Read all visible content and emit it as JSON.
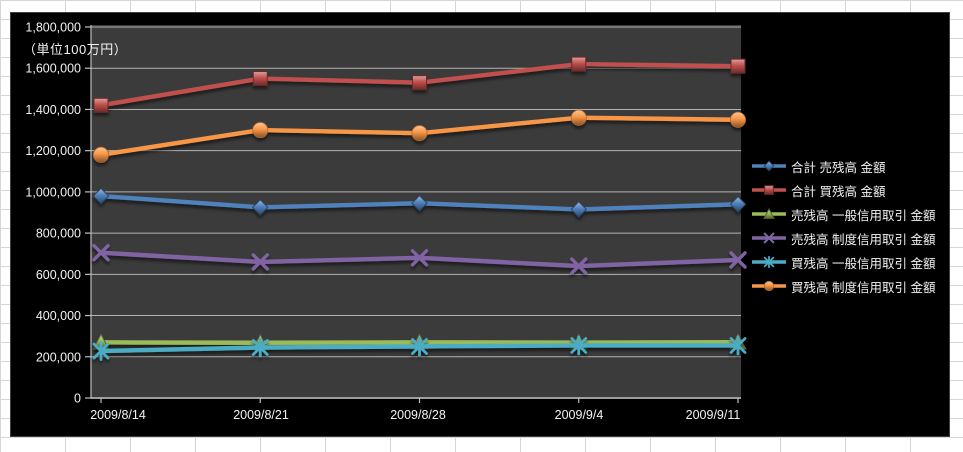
{
  "chart": {
    "background": "#000000",
    "plot_fill": "#3b3b3b",
    "gridline_color": "#c8c8c8",
    "axis_color": "#bfbfbf",
    "text_color": "#f2f2f2"
  },
  "chart_data": {
    "type": "line",
    "title": "",
    "unit_annotation": "（単位100万円）",
    "categories": [
      "2009/8/14",
      "2009/8/21",
      "2009/8/28",
      "2009/9/4",
      "2009/9/11"
    ],
    "series": [
      {
        "name": "合計 売残高 金額",
        "color": "#4F81BD",
        "marker": "diamond",
        "values": [
          980000,
          925000,
          945000,
          915000,
          940000
        ]
      },
      {
        "name": "合計 買残高 金額",
        "color": "#C0504D",
        "marker": "square",
        "values": [
          1420000,
          1550000,
          1530000,
          1620000,
          1610000
        ]
      },
      {
        "name": "売残高 一般信用取引 金額",
        "color": "#9BBB59",
        "marker": "triangle",
        "values": [
          270000,
          268000,
          270000,
          269000,
          271000
        ]
      },
      {
        "name": "売残高 制度信用取引 金額",
        "color": "#8064A2",
        "marker": "x-cross",
        "values": [
          705000,
          660000,
          680000,
          640000,
          670000
        ]
      },
      {
        "name": "買残高 一般信用取引 金額",
        "color": "#4BACC6",
        "marker": "asterisk",
        "values": [
          228000,
          245000,
          250000,
          255000,
          255000
        ]
      },
      {
        "name": "買残高 制度信用取引 金額",
        "color": "#F79646",
        "marker": "circle",
        "values": [
          1180000,
          1300000,
          1285000,
          1360000,
          1350000
        ]
      }
    ],
    "ylim": [
      0,
      1800000
    ],
    "ytick_step": 200000,
    "y_tick_labels": [
      "0",
      "200,000",
      "400,000",
      "600,000",
      "800,000",
      "1,000,000",
      "1,200,000",
      "1,400,000",
      "1,600,000",
      "1,800,000"
    ],
    "grid": true,
    "legend_position": "right"
  }
}
